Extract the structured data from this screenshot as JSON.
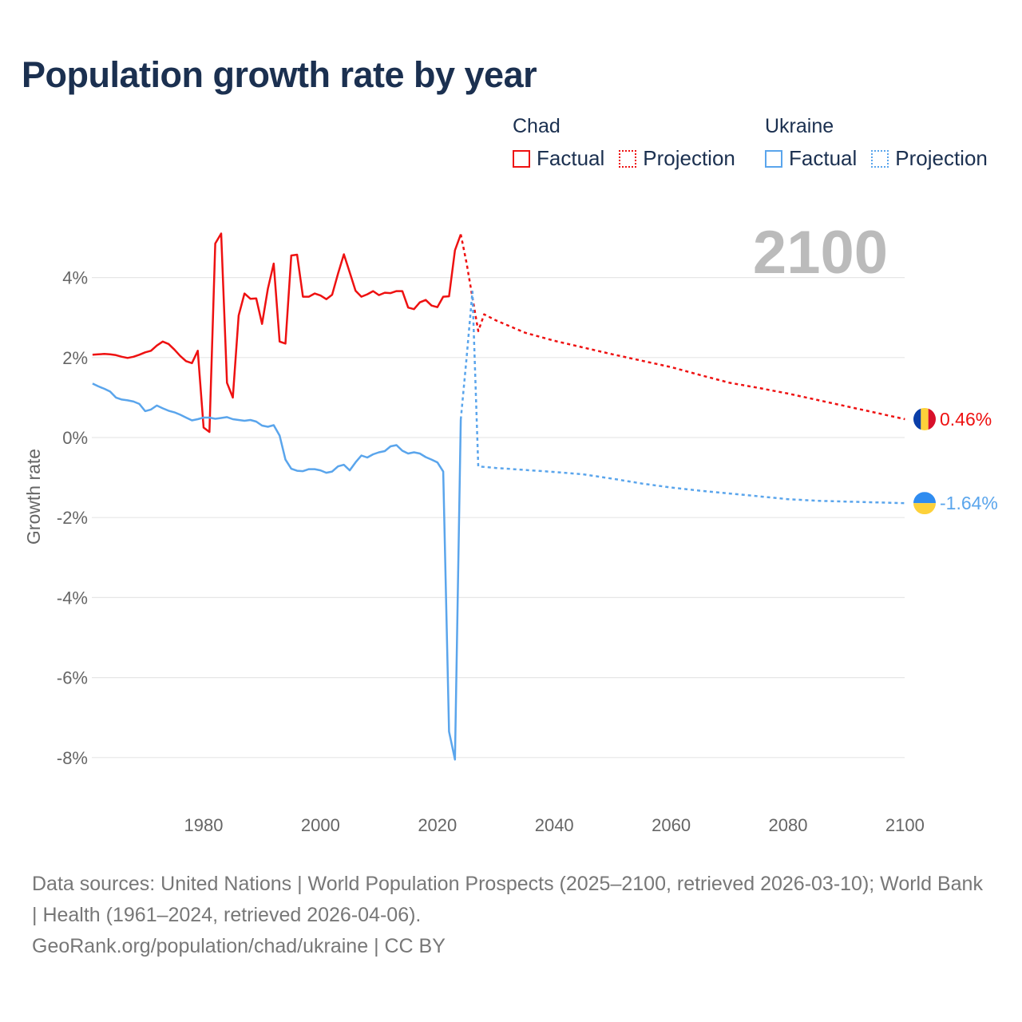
{
  "chart_data": {
    "type": "line",
    "title": "Population growth rate by year",
    "xlabel": "",
    "ylabel": "Growth rate",
    "xlim": [
      1961,
      2100
    ],
    "ylim": [
      -9,
      5.2
    ],
    "x_ticks": [
      1980,
      2000,
      2020,
      2040,
      2060,
      2080,
      2100
    ],
    "x_tick_labels": [
      "1980",
      "2000",
      "2020",
      "2040",
      "2060",
      "2080",
      "2100"
    ],
    "y_ticks": [
      4,
      2,
      0,
      -2,
      -4,
      -6,
      -8
    ],
    "y_tick_labels": [
      "4%",
      "2%",
      "0%",
      "-2%",
      "-4%",
      "-6%",
      "-8%"
    ],
    "grid": true,
    "current_year_label": "2100",
    "legend": {
      "placement": "top-right",
      "groups": [
        {
          "name": "Chad",
          "items": [
            "Factual",
            "Projection"
          ],
          "color": "#ee1111"
        },
        {
          "name": "Ukraine",
          "items": [
            "Factual",
            "Projection"
          ],
          "color": "#5aa5ec"
        }
      ]
    },
    "series": [
      {
        "name": "Chad",
        "kind": "Factual",
        "color": "#ee1111",
        "x": [
          1961,
          1962,
          1963,
          1964,
          1965,
          1966,
          1967,
          1968,
          1969,
          1970,
          1971,
          1972,
          1973,
          1974,
          1975,
          1976,
          1977,
          1978,
          1979,
          1980,
          1981,
          1982,
          1983,
          1984,
          1985,
          1986,
          1987,
          1988,
          1989,
          1990,
          1991,
          1992,
          1993,
          1994,
          1995,
          1996,
          1997,
          1998,
          1999,
          2000,
          2001,
          2002,
          2003,
          2004,
          2005,
          2006,
          2007,
          2008,
          2009,
          2010,
          2011,
          2012,
          2013,
          2014,
          2015,
          2016,
          2017,
          2018,
          2019,
          2020,
          2021,
          2022,
          2023,
          2024
        ],
        "values": [
          2.07,
          2.08,
          2.09,
          2.08,
          2.06,
          2.02,
          1.99,
          2.02,
          2.07,
          2.13,
          2.17,
          2.3,
          2.4,
          2.34,
          2.2,
          2.04,
          1.91,
          1.86,
          2.17,
          0.25,
          0.14,
          4.85,
          5.1,
          1.37,
          1.0,
          3.05,
          3.6,
          3.47,
          3.48,
          2.84,
          3.72,
          4.35,
          2.4,
          2.35,
          4.55,
          4.57,
          3.52,
          3.52,
          3.6,
          3.55,
          3.46,
          3.57,
          4.1,
          4.58,
          4.13,
          3.67,
          3.52,
          3.58,
          3.66,
          3.56,
          3.62,
          3.61,
          3.66,
          3.66,
          3.25,
          3.21,
          3.38,
          3.44,
          3.3,
          3.26,
          3.52,
          3.53,
          4.68,
          5.08
        ]
      },
      {
        "name": "Chad",
        "kind": "Projection",
        "color": "#ee1111",
        "x": [
          2024,
          2025,
          2026,
          2027,
          2028,
          2030,
          2035,
          2040,
          2045,
          2050,
          2055,
          2060,
          2065,
          2070,
          2075,
          2080,
          2085,
          2090,
          2095,
          2100
        ],
        "values": [
          5.08,
          4.36,
          3.5,
          2.66,
          3.08,
          2.93,
          2.62,
          2.42,
          2.25,
          2.08,
          1.92,
          1.76,
          1.56,
          1.37,
          1.24,
          1.1,
          0.94,
          0.78,
          0.62,
          0.46
        ]
      },
      {
        "name": "Ukraine",
        "kind": "Factual",
        "color": "#5aa5ec",
        "x": [
          1961,
          1962,
          1963,
          1964,
          1965,
          1966,
          1967,
          1968,
          1969,
          1970,
          1971,
          1972,
          1973,
          1974,
          1975,
          1976,
          1977,
          1978,
          1979,
          1980,
          1981,
          1982,
          1983,
          1984,
          1985,
          1986,
          1987,
          1988,
          1989,
          1990,
          1991,
          1992,
          1993,
          1994,
          1995,
          1996,
          1997,
          1998,
          1999,
          2000,
          2001,
          2002,
          2003,
          2004,
          2005,
          2006,
          2007,
          2008,
          2009,
          2010,
          2011,
          2012,
          2013,
          2014,
          2015,
          2016,
          2017,
          2018,
          2019,
          2020,
          2021,
          2022,
          2023,
          2024
        ],
        "values": [
          1.35,
          1.28,
          1.22,
          1.15,
          1.0,
          0.95,
          0.93,
          0.9,
          0.84,
          0.66,
          0.7,
          0.8,
          0.73,
          0.67,
          0.63,
          0.57,
          0.5,
          0.43,
          0.46,
          0.5,
          0.5,
          0.47,
          0.49,
          0.51,
          0.46,
          0.44,
          0.42,
          0.44,
          0.4,
          0.3,
          0.27,
          0.31,
          0.05,
          -0.55,
          -0.78,
          -0.83,
          -0.84,
          -0.79,
          -0.79,
          -0.82,
          -0.88,
          -0.85,
          -0.72,
          -0.68,
          -0.82,
          -0.62,
          -0.45,
          -0.5,
          -0.42,
          -0.37,
          -0.34,
          -0.22,
          -0.19,
          -0.33,
          -0.4,
          -0.37,
          -0.4,
          -0.49,
          -0.55,
          -0.62,
          -0.85,
          -7.35,
          -8.05,
          0.45
        ]
      },
      {
        "name": "Ukraine",
        "kind": "Projection",
        "color": "#5aa5ec",
        "x": [
          2024,
          2025,
          2026,
          2027,
          2030,
          2035,
          2040,
          2045,
          2050,
          2055,
          2060,
          2065,
          2070,
          2075,
          2080,
          2085,
          2090,
          2095,
          2100
        ],
        "values": [
          0.45,
          2.0,
          3.65,
          -0.72,
          -0.76,
          -0.81,
          -0.86,
          -0.92,
          -1.03,
          -1.15,
          -1.25,
          -1.33,
          -1.4,
          -1.47,
          -1.54,
          -1.58,
          -1.6,
          -1.62,
          -1.64
        ]
      }
    ],
    "end_labels": [
      {
        "name": "Chad",
        "text": "0.46%",
        "color": "#ee1111",
        "value": 0.46,
        "flag": "chad-flag"
      },
      {
        "name": "Ukraine",
        "text": "-1.64%",
        "color": "#5aa5ec",
        "value": -1.64,
        "flag": "ukraine-flag"
      }
    ]
  },
  "footer": {
    "sources": "Data sources: United Nations | World Population Prospects (2025–2100, retrieved 2026-03-10); World Bank | Health (1961–2024, retrieved 2026-04-06).",
    "credit": "GeoRank.org/population/chad/ukraine | CC BY"
  }
}
